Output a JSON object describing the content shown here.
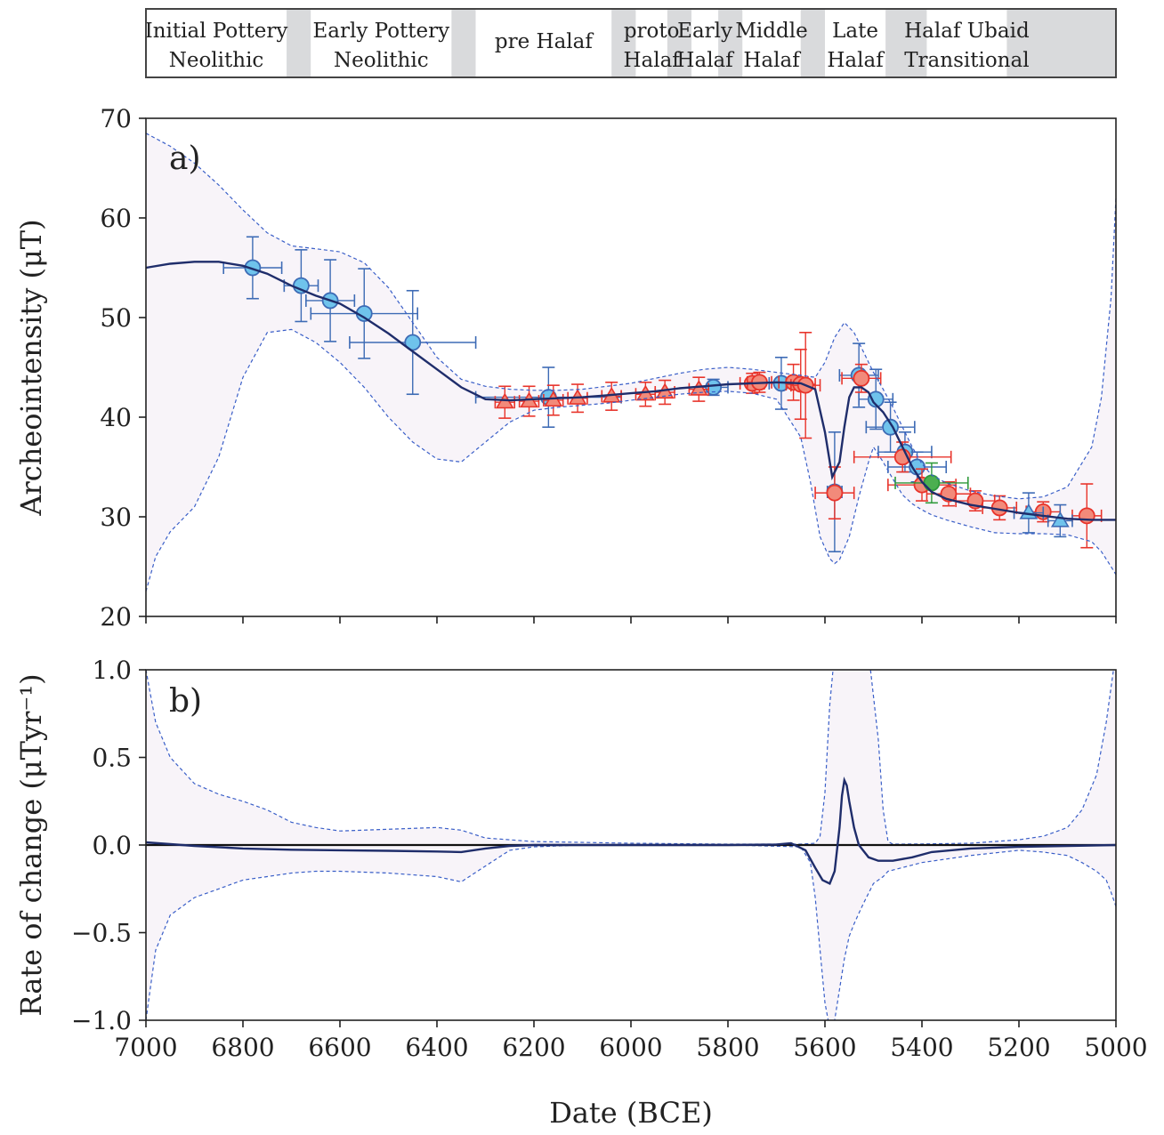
{
  "periods": [
    {
      "label1": "Initial Pottery",
      "label2": "Neolithic",
      "start": 7000,
      "end": 6710,
      "gap_end": 6660
    },
    {
      "label1": "Early Pottery",
      "label2": "Neolithic",
      "start": 6660,
      "end": 6370,
      "gap_end": 6320
    },
    {
      "label1": "pre Halaf",
      "label2": "",
      "start": 6320,
      "end": 6040,
      "gap_end": 5990
    },
    {
      "label1": "proto",
      "label2": "Halaf",
      "start": 5990,
      "end": 5925,
      "gap_end": 5875
    },
    {
      "label1": "Early",
      "label2": "Halaf",
      "start": 5875,
      "end": 5820,
      "gap_end": 5770
    },
    {
      "label1": "Middle",
      "label2": "Halaf",
      "start": 5770,
      "end": 5650,
      "gap_end": 5600
    },
    {
      "label1": "Late",
      "label2": "Halaf",
      "start": 5600,
      "end": 5475,
      "gap_end": 5390
    },
    {
      "label1": "Halaf Ubaid",
      "label2": "Transitional",
      "start": 5390,
      "end": 5225,
      "gap_end": 5000
    }
  ],
  "chart_data": [
    {
      "type": "line",
      "panel_label": "a)",
      "ylabel": "Archeointensity (μT)",
      "xlim": [
        7000,
        5000
      ],
      "ylim": [
        20,
        70
      ],
      "yticks": [
        20,
        30,
        40,
        50,
        60,
        70
      ],
      "colors": {
        "curve": "#1f2d6b",
        "envelope": "#3a5fc8",
        "fill": "#f8f4f9",
        "blue": "#6fc3ec",
        "red": "#f28a7a",
        "green": "#4caf50"
      },
      "curve": {
        "x": [
          7000,
          6950,
          6900,
          6850,
          6800,
          6750,
          6700,
          6650,
          6600,
          6550,
          6500,
          6450,
          6400,
          6350,
          6300,
          6250,
          6200,
          6150,
          6100,
          6050,
          6000,
          5950,
          5900,
          5850,
          5800,
          5750,
          5700,
          5650,
          5620,
          5600,
          5585,
          5570,
          5560,
          5550,
          5540,
          5525,
          5510,
          5500,
          5480,
          5460,
          5440,
          5420,
          5400,
          5380,
          5350,
          5300,
          5250,
          5200,
          5150,
          5100,
          5050,
          5000
        ],
        "y": [
          55.0,
          55.4,
          55.6,
          55.6,
          55.2,
          54.4,
          53.2,
          52.2,
          51.4,
          50.0,
          48.4,
          46.6,
          44.8,
          43.0,
          41.8,
          41.7,
          41.8,
          41.9,
          42.0,
          42.2,
          42.4,
          42.6,
          42.9,
          43.1,
          43.3,
          43.4,
          43.5,
          43.4,
          42.8,
          38.5,
          34.0,
          35.5,
          39.0,
          42.0,
          43.0,
          43.0,
          42.5,
          41.5,
          40.5,
          39.0,
          37.0,
          35.0,
          33.5,
          32.5,
          31.8,
          31.2,
          30.8,
          30.4,
          30.1,
          29.8,
          29.7,
          29.7
        ]
      },
      "upper": {
        "x": [
          7000,
          6950,
          6900,
          6850,
          6800,
          6750,
          6700,
          6650,
          6600,
          6550,
          6500,
          6450,
          6400,
          6350,
          6300,
          6250,
          6200,
          6150,
          6100,
          6050,
          6000,
          5950,
          5900,
          5850,
          5800,
          5750,
          5700,
          5650,
          5620,
          5600,
          5580,
          5560,
          5540,
          5520,
          5500,
          5480,
          5460,
          5440,
          5420,
          5400,
          5380,
          5350,
          5300,
          5250,
          5200,
          5150,
          5100,
          5050,
          5030,
          5010,
          5000
        ],
        "y": [
          68.5,
          67.2,
          65.5,
          63.3,
          60.8,
          58.5,
          57.2,
          56.9,
          56.6,
          55.5,
          53.0,
          49.5,
          46.0,
          43.8,
          43.1,
          42.8,
          42.7,
          42.7,
          42.8,
          43.1,
          43.4,
          43.9,
          44.4,
          44.8,
          45.0,
          44.8,
          44.5,
          44.2,
          44.0,
          45.5,
          48.0,
          49.5,
          48.5,
          46.5,
          44.5,
          42.8,
          41.0,
          39.0,
          37.0,
          35.3,
          34.2,
          33.4,
          32.6,
          32.1,
          31.8,
          32.0,
          33.0,
          37.0,
          42.0,
          52.0,
          62.0
        ]
      },
      "lower": {
        "x": [
          7000,
          6980,
          6950,
          6900,
          6850,
          6800,
          6750,
          6700,
          6650,
          6600,
          6550,
          6500,
          6450,
          6400,
          6350,
          6300,
          6250,
          6200,
          6150,
          6100,
          6050,
          6000,
          5950,
          5900,
          5850,
          5800,
          5750,
          5700,
          5650,
          5630,
          5610,
          5590,
          5580,
          5570,
          5550,
          5530,
          5510,
          5500,
          5480,
          5460,
          5440,
          5420,
          5400,
          5380,
          5350,
          5300,
          5250,
          5200,
          5150,
          5100,
          5050,
          5030,
          5010,
          5000
        ],
        "y": [
          22.5,
          26.0,
          28.5,
          31.0,
          36.0,
          44.0,
          48.5,
          48.8,
          47.5,
          45.5,
          43.0,
          40.0,
          37.5,
          35.8,
          35.5,
          37.5,
          39.5,
          40.7,
          41.0,
          41.2,
          41.4,
          41.7,
          42.0,
          42.3,
          42.5,
          42.6,
          42.4,
          41.8,
          38.0,
          33.5,
          28.0,
          25.8,
          25.3,
          25.7,
          28.0,
          32.0,
          35.5,
          37.0,
          35.5,
          33.8,
          32.2,
          31.3,
          30.7,
          30.2,
          29.7,
          29.0,
          28.4,
          28.3,
          28.3,
          28.2,
          27.5,
          26.5,
          25.0,
          24.2
        ]
      },
      "points": [
        {
          "x": 6780,
          "y": 55.0,
          "xerr": 60,
          "yerr": 3.1,
          "marker": "circle",
          "color": "blue"
        },
        {
          "x": 6680,
          "y": 53.2,
          "xerr": 35,
          "yerr": 3.6,
          "marker": "circle",
          "color": "blue"
        },
        {
          "x": 6620,
          "y": 51.7,
          "xerr": 50,
          "yerr": 4.1,
          "marker": "circle",
          "color": "blue"
        },
        {
          "x": 6550,
          "y": 50.4,
          "xerr": 110,
          "yerr": 4.5,
          "marker": "circle",
          "color": "blue"
        },
        {
          "x": 6450,
          "y": 47.5,
          "xerr": 130,
          "yerr": 5.2,
          "marker": "circle",
          "color": "blue"
        },
        {
          "x": 6170,
          "y": 42.0,
          "xerr": 150,
          "yerr": 3.0,
          "marker": "circle",
          "color": "blue"
        },
        {
          "x": 5830,
          "y": 43.0,
          "xerr": 30,
          "yerr": 0.8,
          "marker": "circle",
          "color": "blue"
        },
        {
          "x": 5690,
          "y": 43.4,
          "xerr": 25,
          "yerr": 2.6,
          "marker": "circle",
          "color": "blue"
        },
        {
          "x": 5530,
          "y": 44.2,
          "xerr": 40,
          "yerr": 3.2,
          "marker": "circle",
          "color": "blue"
        },
        {
          "x": 5495,
          "y": 41.8,
          "xerr": 35,
          "yerr": 3.0,
          "marker": "circle",
          "color": "blue"
        },
        {
          "x": 5465,
          "y": 39.0,
          "xerr": 50,
          "yerr": 2.5,
          "marker": "circle",
          "color": "blue"
        },
        {
          "x": 5435,
          "y": 36.5,
          "xerr": 55,
          "yerr": 2.0,
          "marker": "circle",
          "color": "blue"
        },
        {
          "x": 5410,
          "y": 35.0,
          "xerr": 60,
          "yerr": 1.5,
          "marker": "circle",
          "color": "blue"
        },
        {
          "x": 5580,
          "y": 32.5,
          "xerr": 15,
          "yerr": 6.0,
          "marker": "circle",
          "color": "blue"
        },
        {
          "x": 6260,
          "y": 41.5,
          "xerr": 20,
          "yerr": 1.6,
          "marker": "triangle",
          "color": "red"
        },
        {
          "x": 6210,
          "y": 41.6,
          "xerr": 20,
          "yerr": 1.5,
          "marker": "triangle",
          "color": "red"
        },
        {
          "x": 6160,
          "y": 41.7,
          "xerr": 20,
          "yerr": 1.5,
          "marker": "triangle",
          "color": "red"
        },
        {
          "x": 6110,
          "y": 41.9,
          "xerr": 20,
          "yerr": 1.4,
          "marker": "triangle",
          "color": "red"
        },
        {
          "x": 6040,
          "y": 42.1,
          "xerr": 20,
          "yerr": 1.4,
          "marker": "triangle",
          "color": "red"
        },
        {
          "x": 5970,
          "y": 42.3,
          "xerr": 20,
          "yerr": 1.2,
          "marker": "triangle",
          "color": "red"
        },
        {
          "x": 5930,
          "y": 42.5,
          "xerr": 20,
          "yerr": 1.2,
          "marker": "triangle",
          "color": "red"
        },
        {
          "x": 5860,
          "y": 42.8,
          "xerr": 20,
          "yerr": 1.2,
          "marker": "triangle",
          "color": "red"
        },
        {
          "x": 5750,
          "y": 43.4,
          "xerr": 25,
          "yerr": 1.0,
          "marker": "circle",
          "color": "red"
        },
        {
          "x": 5735,
          "y": 43.5,
          "xerr": 25,
          "yerr": 1.0,
          "marker": "circle",
          "color": "red"
        },
        {
          "x": 5665,
          "y": 43.5,
          "xerr": 30,
          "yerr": 1.8,
          "marker": "circle",
          "color": "red"
        },
        {
          "x": 5650,
          "y": 43.3,
          "xerr": 30,
          "yerr": 3.5,
          "marker": "circle",
          "color": "red"
        },
        {
          "x": 5640,
          "y": 43.2,
          "xerr": 30,
          "yerr": 5.3,
          "marker": "circle",
          "color": "red"
        },
        {
          "x": 5525,
          "y": 43.9,
          "xerr": 40,
          "yerr": 1.4,
          "marker": "circle",
          "color": "red"
        },
        {
          "x": 5580,
          "y": 32.4,
          "xerr": 40,
          "yerr": 2.6,
          "marker": "circle",
          "color": "red"
        },
        {
          "x": 5440,
          "y": 36.0,
          "xerr": 100,
          "yerr": 1.5,
          "marker": "circle",
          "color": "red"
        },
        {
          "x": 5400,
          "y": 33.2,
          "xerr": 70,
          "yerr": 1.6,
          "marker": "circle",
          "color": "red"
        },
        {
          "x": 5345,
          "y": 32.3,
          "xerr": 45,
          "yerr": 1.2,
          "marker": "circle",
          "color": "red"
        },
        {
          "x": 5290,
          "y": 31.6,
          "xerr": 40,
          "yerr": 1.0,
          "marker": "circle",
          "color": "red"
        },
        {
          "x": 5240,
          "y": 30.9,
          "xerr": 35,
          "yerr": 1.2,
          "marker": "circle",
          "color": "red"
        },
        {
          "x": 5150,
          "y": 30.5,
          "xerr": 35,
          "yerr": 1.0,
          "marker": "circle",
          "color": "red"
        },
        {
          "x": 5060,
          "y": 30.1,
          "xerr": 30,
          "yerr": 3.2,
          "marker": "circle",
          "color": "red"
        },
        {
          "x": 5380,
          "y": 33.4,
          "xerr": 75,
          "yerr": 2.0,
          "marker": "circle",
          "color": "green"
        },
        {
          "x": 5180,
          "y": 30.4,
          "xerr": 30,
          "yerr": 2.0,
          "marker": "triangle",
          "color": "blue"
        },
        {
          "x": 5115,
          "y": 29.6,
          "xerr": 25,
          "yerr": 1.6,
          "marker": "triangle",
          "color": "blue"
        }
      ]
    },
    {
      "type": "line",
      "panel_label": "b)",
      "ylabel": "Rate of change (μTyr⁻¹)",
      "xlabel": "Date (BCE)",
      "xlim": [
        7000,
        5000
      ],
      "ylim": [
        -1.0,
        1.0
      ],
      "yticks": [
        -1.0,
        -0.5,
        0.0,
        0.5,
        1.0
      ],
      "yticklabels": [
        "−1.0",
        "−0.5",
        "0.0",
        "0.5",
        "1.0"
      ],
      "xticks": [
        7000,
        6800,
        6600,
        6400,
        6200,
        6000,
        5800,
        5600,
        5400,
        5200,
        5000
      ],
      "curve": {
        "x": [
          7000,
          6950,
          6900,
          6800,
          6700,
          6600,
          6500,
          6400,
          6350,
          6300,
          6250,
          6200,
          6100,
          6000,
          5900,
          5800,
          5700,
          5670,
          5640,
          5620,
          5605,
          5590,
          5580,
          5570,
          5565,
          5560,
          5555,
          5550,
          5540,
          5530,
          5510,
          5490,
          5460,
          5420,
          5380,
          5300,
          5200,
          5100,
          5000
        ],
        "y": [
          0.015,
          0.005,
          -0.005,
          -0.02,
          -0.027,
          -0.03,
          -0.033,
          -0.037,
          -0.04,
          -0.02,
          -0.005,
          0.0,
          0.0,
          0.0,
          0.0,
          0.0,
          0.003,
          0.01,
          -0.03,
          -0.13,
          -0.2,
          -0.22,
          -0.15,
          0.1,
          0.28,
          0.37,
          0.34,
          0.25,
          0.1,
          0.0,
          -0.07,
          -0.09,
          -0.09,
          -0.07,
          -0.04,
          -0.02,
          -0.01,
          -0.005,
          0.0
        ]
      },
      "upper": {
        "x": [
          7000,
          6990,
          6980,
          6950,
          6900,
          6850,
          6800,
          6750,
          6700,
          6650,
          6600,
          6500,
          6400,
          6350,
          6300,
          6200,
          6000,
          5800,
          5650,
          5620,
          5610,
          5600,
          5590,
          5580,
          5560,
          5550,
          5530,
          5510,
          5490,
          5480,
          5470,
          5460,
          5400,
          5300,
          5200,
          5150,
          5100,
          5070,
          5040,
          5020,
          5010,
          5000
        ],
        "y": [
          1.0,
          0.85,
          0.7,
          0.5,
          0.35,
          0.29,
          0.25,
          0.2,
          0.13,
          0.1,
          0.08,
          0.09,
          0.1,
          0.085,
          0.04,
          0.02,
          0.01,
          0.005,
          0.005,
          0.01,
          0.05,
          0.3,
          0.8,
          1.1,
          1.1,
          1.1,
          1.1,
          1.1,
          0.6,
          0.2,
          0.02,
          0.005,
          0.006,
          0.01,
          0.03,
          0.05,
          0.1,
          0.2,
          0.4,
          0.7,
          0.9,
          1.1
        ]
      },
      "lower": {
        "x": [
          7000,
          6990,
          6980,
          6950,
          6900,
          6850,
          6800,
          6750,
          6700,
          6650,
          6600,
          6500,
          6400,
          6350,
          6300,
          6250,
          6200,
          6100,
          6000,
          5800,
          5650,
          5630,
          5620,
          5610,
          5600,
          5590,
          5580,
          5560,
          5550,
          5540,
          5530,
          5520,
          5500,
          5480,
          5470,
          5400,
          5300,
          5200,
          5150,
          5100,
          5070,
          5040,
          5020,
          5010,
          5000
        ],
        "y": [
          -1.0,
          -0.8,
          -0.6,
          -0.4,
          -0.3,
          -0.25,
          -0.2,
          -0.18,
          -0.16,
          -0.15,
          -0.15,
          -0.16,
          -0.18,
          -0.21,
          -0.12,
          -0.03,
          -0.01,
          0.0,
          0.0,
          0.0,
          -0.01,
          -0.1,
          -0.3,
          -0.6,
          -0.9,
          -1.05,
          -1.0,
          -0.65,
          -0.52,
          -0.45,
          -0.39,
          -0.33,
          -0.22,
          -0.18,
          -0.15,
          -0.1,
          -0.06,
          -0.03,
          -0.04,
          -0.06,
          -0.1,
          -0.15,
          -0.2,
          -0.27,
          -0.35
        ]
      }
    }
  ]
}
